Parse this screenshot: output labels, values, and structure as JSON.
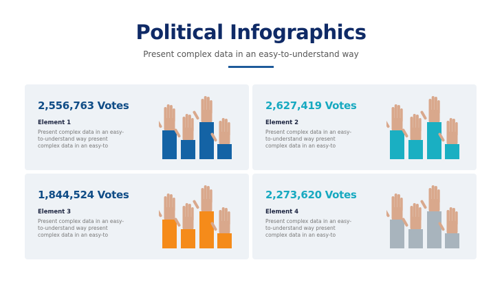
{
  "header": {
    "title": "Political Infographics",
    "subtitle": "Present complex data in an easy-to-understand way"
  },
  "colors": {
    "title": "#0f2a66",
    "skin": "#d9a88c",
    "card_bg": "#eef2f6"
  },
  "cards": [
    {
      "votes": "2,556,763 Votes",
      "element": "Element 1",
      "description": "Present complex data in an easy-to-understand way present complex data in an easy-to",
      "color": "#1463a5",
      "icon": "raised-hands-bar-icon"
    },
    {
      "votes": "2,627,419 Votes",
      "element": "Element 2",
      "description": "Present complex data in an easy-to-understand way present complex data in an easy-to",
      "color": "#1aafc2",
      "icon": "raised-hands-bar-icon"
    },
    {
      "votes": "1,844,524 Votes",
      "element": "Element 3",
      "description": "Present complex data in an easy-to-understand way present complex data in an easy-to",
      "color": "#f58b1a",
      "icon": "raised-hands-bar-icon"
    },
    {
      "votes": "2,273,620 Votes",
      "element": "Element 4",
      "description": "Present complex data in an easy-to-understand way present complex data in an easy-to",
      "color": "#a8b4bd",
      "icon": "raised-hands-bar-icon"
    }
  ]
}
